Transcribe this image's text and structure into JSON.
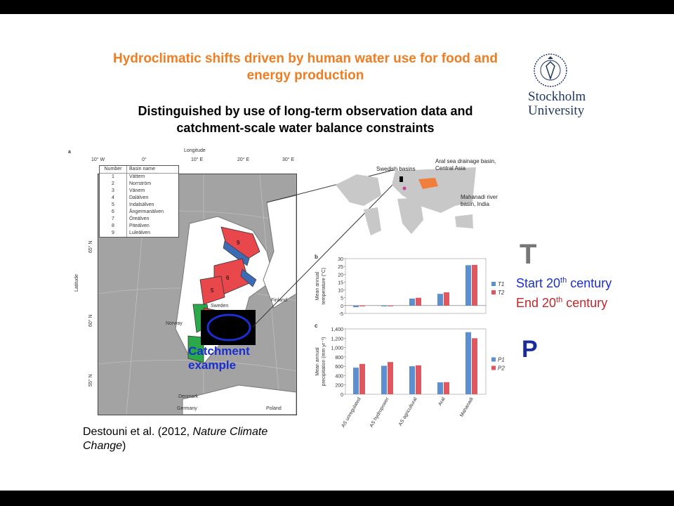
{
  "title_line1": "Hydroclimatic shifts driven by human water use for food and",
  "title_line2": "energy production",
  "subtitle_line1": "Distinguished by use of long-term observation data and",
  "subtitle_line2": "catchment-scale water balance constraints",
  "university": {
    "line1": "Stockholm",
    "line2": "University"
  },
  "citation": {
    "prefix": "Destouni et al. (2012, ",
    "journal_line1": "Nature Climate",
    "journal_line2": "Change",
    "suffix": ")"
  },
  "panel_a": {
    "label": "a",
    "axis_title_top": "Longitude",
    "axis_title_left": "Latitude",
    "lon_ticks": [
      "10° W",
      "0°",
      "10° E",
      "20° E",
      "30° E"
    ],
    "lat_ticks": [
      "65° N",
      "60° N",
      "55° N"
    ],
    "table_headers": [
      "Number",
      "Basin name"
    ],
    "basins": [
      {
        "num": "1",
        "name": "Vättern"
      },
      {
        "num": "2",
        "name": "Norrström"
      },
      {
        "num": "3",
        "name": "Vänern"
      },
      {
        "num": "4",
        "name": "Dalälven"
      },
      {
        "num": "5",
        "name": "Indalsälven"
      },
      {
        "num": "6",
        "name": "Ångermanälven"
      },
      {
        "num": "7",
        "name": "Öreälven"
      },
      {
        "num": "8",
        "name": "Piteälven"
      },
      {
        "num": "9",
        "name": "Luleälven"
      }
    ],
    "countries": [
      "Finland",
      "Sweden",
      "Norway",
      "Denmark",
      "Germany",
      "Poland"
    ],
    "catchment_label_1": "Catchment",
    "catchment_label_2": "example"
  },
  "world_map": {
    "label_swedish": "Swedish basins",
    "label_aral_1": "Aral sea drainage basin,",
    "label_aral_2": "Central Asia",
    "label_mahanadi_1": "Mahanadi river",
    "label_mahanadi_2": "basin, India"
  },
  "legend_T": {
    "big": "T",
    "start": "Start 20",
    "end": "End 20",
    "sup": "th",
    "tail": " century"
  },
  "legend_P": {
    "big": "P"
  },
  "chart_data": [
    {
      "type": "bar",
      "panel": "b",
      "ylabel_1": "Mean annual",
      "ylabel_2": "temperature (°C)",
      "ylim": [
        -5,
        30
      ],
      "yticks": [
        -5,
        0,
        5,
        10,
        15,
        20,
        25,
        30
      ],
      "categories": [
        "AS unregulated",
        "AS hydropower",
        "AS agricultural",
        "Aral",
        "Mahanadi"
      ],
      "series": [
        {
          "name": "T1",
          "color": "#5b8fd1",
          "values": [
            -1,
            -0.5,
            4.5,
            7.5,
            25.8
          ]
        },
        {
          "name": "T2",
          "color": "#e0585f",
          "values": [
            -0.5,
            0,
            5,
            8.5,
            26
          ]
        }
      ]
    },
    {
      "type": "bar",
      "panel": "c",
      "ylabel_1": "Mean annual",
      "ylabel_2": "precipitation (mm yr⁻¹)",
      "ylim": [
        0,
        1400
      ],
      "yticks": [
        0,
        200,
        400,
        600,
        800,
        1000,
        1200,
        1400
      ],
      "ytick_labels": [
        "0",
        "200",
        "400",
        "600",
        "800",
        "1,000",
        "1,200",
        "1,400"
      ],
      "categories": [
        "AS unregulated",
        "AS hydropower",
        "AS agricultural",
        "Aral",
        "Mahanadi"
      ],
      "series": [
        {
          "name": "P1",
          "color": "#5b8fd1",
          "values": [
            570,
            610,
            600,
            255,
            1330
          ]
        },
        {
          "name": "P2",
          "color": "#e0585f",
          "values": [
            650,
            690,
            620,
            260,
            1200
          ]
        }
      ]
    }
  ]
}
